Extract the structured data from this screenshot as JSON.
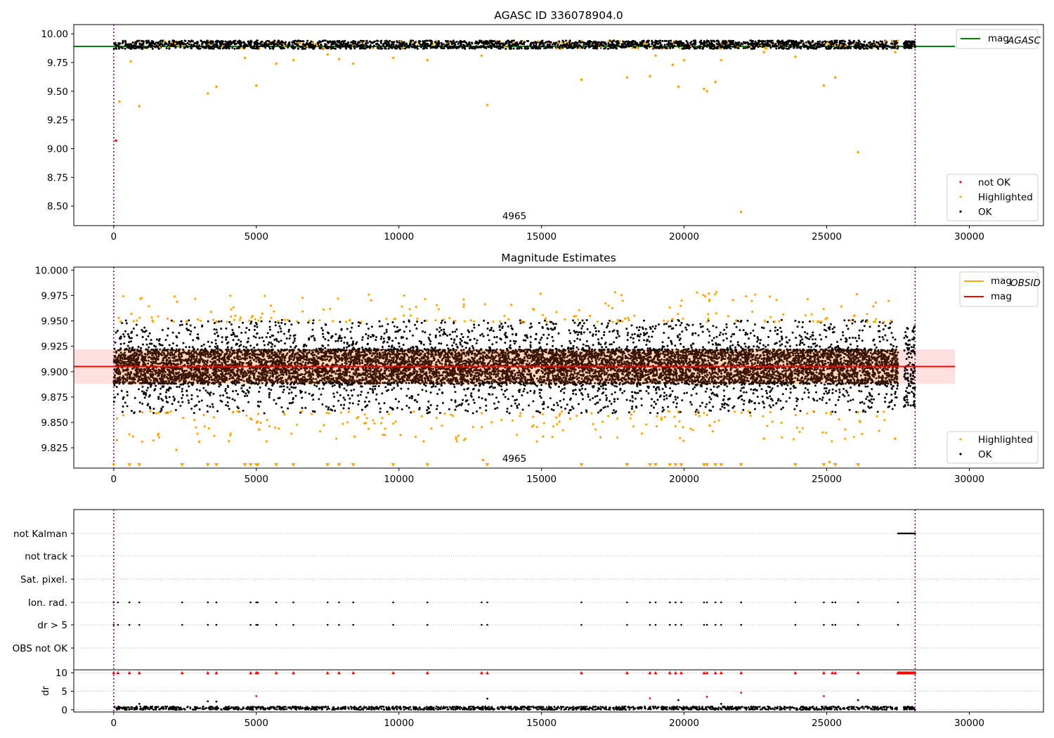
{
  "chart_data": [
    {
      "type": "scatter",
      "title": "AGASC ID 336078904.0",
      "xlim": [
        -1400,
        32600
      ],
      "ylim": [
        8.33,
        10.08
      ],
      "x_ticks": [
        "0",
        "5000",
        "10000",
        "15000",
        "20000",
        "25000",
        "30000"
      ],
      "y_ticks": [
        "10.00",
        "9.75",
        "9.50",
        "9.25",
        "9.00",
        "8.75",
        "8.50"
      ],
      "annotation": "4965",
      "vlines": [
        0,
        28100
      ],
      "mag_agasc": 9.89,
      "legend_top": {
        "position": "upper right",
        "entries": [
          {
            "label": "mag",
            "sub": "AGASC",
            "color": "#008000"
          }
        ]
      },
      "legend_bottom": {
        "position": "lower right",
        "entries": [
          {
            "label": "not OK",
            "color": "#ff0000"
          },
          {
            "label": "Highlighted",
            "color": "#ffa500"
          },
          {
            "label": "OK",
            "color": "#000000"
          }
        ]
      },
      "series": [
        {
          "name": "not OK",
          "color": "#ff0000",
          "points": [
            [
              80,
              9.07
            ]
          ]
        },
        {
          "name": "Highlighted",
          "color": "#ffa500",
          "points": [
            [
              200,
              9.41
            ],
            [
              600,
              9.76
            ],
            [
              900,
              9.37
            ],
            [
              3300,
              9.48
            ],
            [
              3600,
              9.54
            ],
            [
              4600,
              9.79
            ],
            [
              5000,
              9.55
            ],
            [
              5700,
              9.74
            ],
            [
              6300,
              9.77
            ],
            [
              7500,
              9.82
            ],
            [
              7900,
              9.78
            ],
            [
              8400,
              9.74
            ],
            [
              9800,
              9.79
            ],
            [
              11000,
              9.77
            ],
            [
              12900,
              9.81
            ],
            [
              13100,
              9.38
            ],
            [
              16400,
              9.6
            ],
            [
              18000,
              9.62
            ],
            [
              18800,
              9.63
            ],
            [
              19000,
              9.81
            ],
            [
              19600,
              9.73
            ],
            [
              19800,
              9.54
            ],
            [
              20000,
              9.77
            ],
            [
              20700,
              9.52
            ],
            [
              20800,
              9.5
            ],
            [
              21100,
              9.58
            ],
            [
              21300,
              9.77
            ],
            [
              22000,
              8.45
            ],
            [
              22800,
              9.84
            ],
            [
              23900,
              9.8
            ],
            [
              24900,
              9.55
            ],
            [
              25300,
              9.62
            ],
            [
              26100,
              8.97
            ],
            [
              27400,
              9.84
            ]
          ]
        }
      ],
      "ok_band": {
        "x": [
          0,
          27500
        ],
        "extra_x": [
          27700,
          28100
        ],
        "y_center": 9.905,
        "y_spread": 0.04
      }
    },
    {
      "type": "scatter",
      "title": "Magnitude Estimates",
      "xlim": [
        -1400,
        32600
      ],
      "ylim": [
        9.805,
        10.003
      ],
      "x_ticks": [
        "0",
        "5000",
        "10000",
        "15000",
        "20000",
        "25000",
        "30000"
      ],
      "y_ticks": [
        "10.000",
        "9.975",
        "9.950",
        "9.925",
        "9.900",
        "9.875",
        "9.850",
        "9.825"
      ],
      "annotation": "4965",
      "vlines": [
        0,
        28100
      ],
      "mag": 9.905,
      "mag_band": [
        9.888,
        9.922
      ],
      "mag_obsid_band": [
        9.888,
        9.922
      ],
      "legend_top": {
        "position": "upper right",
        "entries": [
          {
            "label": "mag",
            "sub": "OBSID",
            "color": "#ffa500"
          },
          {
            "label": "mag",
            "sub": "",
            "color": "#ff0000"
          }
        ]
      },
      "legend_bottom": {
        "position": "lower right",
        "entries": [
          {
            "label": "Highlighted",
            "color": "#ffa500"
          },
          {
            "label": "OK",
            "color": "#000000"
          }
        ]
      },
      "outliers_below": [
        0,
        550,
        900,
        2400,
        3300,
        3600,
        4600,
        4800,
        5000,
        5050,
        5700,
        6300,
        7500,
        7900,
        8400,
        9800,
        11000,
        13100,
        16400,
        18000,
        18800,
        19000,
        19500,
        19700,
        19900,
        20700,
        20800,
        21100,
        21300,
        22000,
        23900,
        24900,
        25300,
        26100
      ],
      "highlighted_extra": [
        [
          2200,
          9.823
        ],
        [
          3000,
          9.831
        ],
        [
          5100,
          9.843
        ],
        [
          8450,
          9.836
        ],
        [
          20900,
          9.847
        ],
        [
          22800,
          9.834
        ],
        [
          25100,
          9.811
        ],
        [
          12950,
          9.813
        ],
        [
          27400,
          9.834
        ]
      ],
      "ok_band": {
        "x": [
          0,
          27500
        ],
        "extra_x": [
          27700,
          28100
        ],
        "y_center": 9.905,
        "y_spread": 0.042
      }
    },
    {
      "type": "scatter",
      "title": "",
      "xlim": [
        -1400,
        32600
      ],
      "x_ticks": [
        "0",
        "5000",
        "10000",
        "15000",
        "20000",
        "25000",
        "30000"
      ],
      "flag_rows": [
        "not Kalman",
        "not track",
        "Sat. pixel.",
        "Ion. rad.",
        "dr > 5",
        "OBS not OK"
      ],
      "flag_events": [
        0,
        150,
        550,
        900,
        2400,
        3300,
        3600,
        4800,
        5000,
        5050,
        5700,
        6300,
        7500,
        7900,
        8400,
        9800,
        11000,
        12900,
        13100,
        16400,
        18000,
        18800,
        19000,
        19500,
        19700,
        19900,
        20700,
        20800,
        21100,
        21300,
        22000,
        23900,
        24900,
        25200,
        25300,
        26100,
        27500
      ],
      "not_kalman_range": [
        27500,
        28100
      ],
      "dr_label": "dr",
      "dr_ylim": [
        -0.6,
        10.8
      ],
      "dr_ticks": [
        "10",
        "5",
        "0"
      ],
      "dr_spikes": [
        [
          5000,
          3.7
        ],
        [
          13100,
          3.0
        ],
        [
          18800,
          3.1
        ],
        [
          20800,
          3.5
        ],
        [
          22000,
          4.6
        ],
        [
          24900,
          3.7
        ],
        [
          3300,
          2.3
        ],
        [
          3600,
          2.2
        ],
        [
          19800,
          2.6
        ],
        [
          26100,
          2.6
        ],
        [
          21300,
          1.6
        ],
        [
          900,
          1.6
        ]
      ]
    }
  ]
}
